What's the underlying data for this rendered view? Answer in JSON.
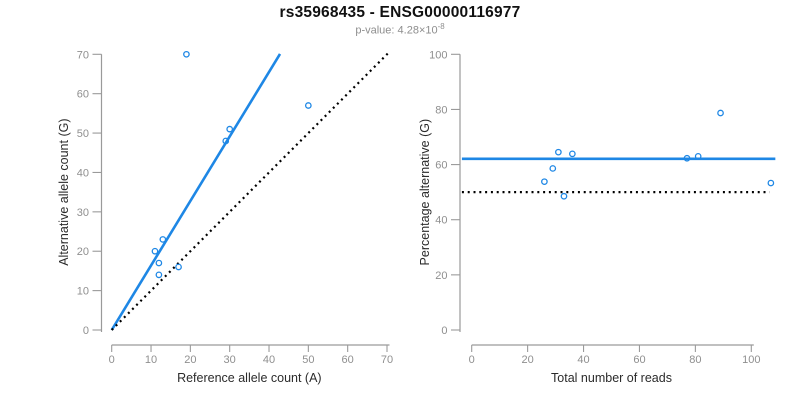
{
  "header": {
    "title": "rs35968435 - ENSG00000116977",
    "subtitle_prefix": "p-value: 4.28×10",
    "subtitle_exponent": "-8"
  },
  "colors": {
    "accent_blue": "#1e87e5",
    "reference_black": "#000000",
    "axis_gray": "#9a9a9a"
  },
  "chart_data": [
    {
      "type": "scatter",
      "panel": "allele-counts",
      "xlabel": "Reference allele count (A)",
      "ylabel": "Alternative allele count (G)",
      "xlim": [
        0,
        70
      ],
      "ylim": [
        0,
        70
      ],
      "xticks": [
        0,
        10,
        20,
        30,
        40,
        50,
        60,
        70
      ],
      "yticks": [
        0,
        10,
        20,
        30,
        40,
        50,
        60,
        70
      ],
      "grid": false,
      "points": [
        [
          19,
          70
        ],
        [
          50,
          57
        ],
        [
          30,
          51
        ],
        [
          29,
          48
        ],
        [
          13,
          23
        ],
        [
          11,
          20
        ],
        [
          12,
          17
        ],
        [
          17,
          16
        ],
        [
          12,
          14
        ]
      ],
      "lines": [
        {
          "name": "fitted-slope",
          "style": "solid",
          "color_key": "accent_blue",
          "x1": 0,
          "y1": 0,
          "x2": 42.8,
          "y2": 70.1
        },
        {
          "name": "identity-y-equals-x",
          "style": "dotted",
          "color_key": "reference_black",
          "x1": 0,
          "y1": 0,
          "x2": 70.5,
          "y2": 70.5
        }
      ]
    },
    {
      "type": "scatter",
      "panel": "percentage-vs-coverage",
      "xlabel": "Total number of reads",
      "ylabel": "Percentage alternative (G)",
      "xlim": [
        0,
        100
      ],
      "ylim": [
        0,
        100
      ],
      "xticks": [
        0,
        20,
        40,
        60,
        80,
        100
      ],
      "yticks": [
        0,
        20,
        40,
        60,
        80,
        100
      ],
      "grid": false,
      "points": [
        [
          26,
          53.8
        ],
        [
          29,
          58.6
        ],
        [
          31,
          64.5
        ],
        [
          33,
          48.5
        ],
        [
          36,
          63.9
        ],
        [
          77,
          62.3
        ],
        [
          81,
          63.0
        ],
        [
          89,
          78.7
        ],
        [
          107,
          53.3
        ]
      ],
      "lines": [
        {
          "name": "fitted-mean-percentage",
          "style": "solid",
          "color_key": "accent_blue",
          "x1": -3.5,
          "y1": 62.1,
          "x2": 108.6,
          "y2": 62.1
        },
        {
          "name": "fifty-percent-reference",
          "style": "dotted",
          "color_key": "reference_black",
          "x1": -3.5,
          "y1": 50,
          "x2": 106.5,
          "y2": 50
        }
      ]
    }
  ]
}
